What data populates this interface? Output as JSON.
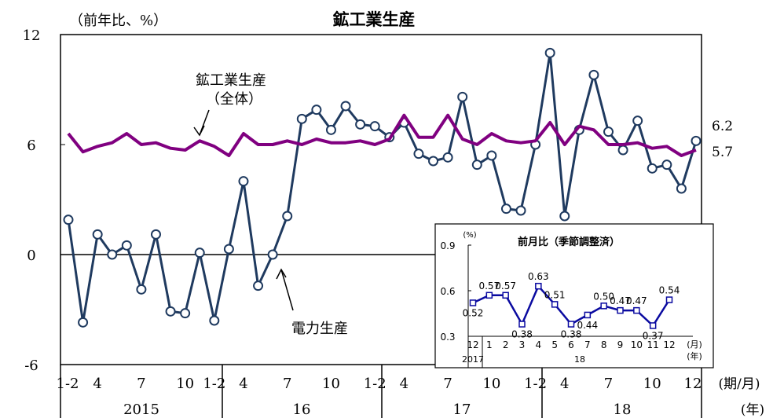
{
  "chart_data": [
    {
      "type": "line",
      "title": "鉱工業生産",
      "ylabel": "（前年比、%）",
      "ylim": [
        -6,
        12
      ],
      "yticks": [
        "12",
        "6",
        "0",
        "-6"
      ],
      "x_ticks": [
        "1-2",
        "4",
        "7",
        "10",
        "1-2",
        "4",
        "7",
        "10",
        "1-2",
        "4",
        "7",
        "10",
        "1-2",
        "4",
        "7",
        "10",
        "12"
      ],
      "x_unit": "(期/月)",
      "years": [
        "2015",
        "16",
        "17",
        "18"
      ],
      "year_unit": "(年)",
      "series": [
        {
          "name": "鉱工業生産",
          "name_line2": "（全体）",
          "color": "#800080",
          "end_label": "5.7",
          "values": [
            6.6,
            5.6,
            5.9,
            6.1,
            6.6,
            6.0,
            6.1,
            5.8,
            5.7,
            6.2,
            5.9,
            5.4,
            6.6,
            6.0,
            6.0,
            6.2,
            6.0,
            6.3,
            6.1,
            6.1,
            6.2,
            6.0,
            6.3,
            7.6,
            6.4,
            6.4,
            7.6,
            6.3,
            6.0,
            6.6,
            6.2,
            6.1,
            6.2,
            7.2,
            6.0,
            7.0,
            6.8,
            6.0,
            6.0,
            6.1,
            5.8,
            5.9,
            5.4,
            5.7
          ]
        },
        {
          "name": "電力生産",
          "color": "#1f3a5f",
          "end_label": "6.2",
          "values": [
            1.9,
            -3.7,
            1.1,
            0.0,
            0.5,
            -1.9,
            1.1,
            -3.1,
            -3.2,
            0.1,
            -3.6,
            0.3,
            4.0,
            -1.7,
            0.0,
            2.1,
            7.4,
            7.9,
            6.8,
            8.1,
            7.1,
            7.0,
            6.4,
            7.2,
            5.5,
            5.1,
            5.3,
            8.6,
            4.9,
            5.4,
            2.5,
            2.4,
            6.0,
            11.0,
            2.1,
            6.8,
            9.8,
            6.7,
            5.7,
            7.3,
            4.7,
            4.9,
            3.6,
            6.2
          ]
        }
      ]
    },
    {
      "type": "line",
      "title": "前月比（季節調整済）",
      "ylabel": "(%)",
      "ylim": [
        0.3,
        0.9
      ],
      "yticks": [
        "0.9",
        "0.6",
        "0.3"
      ],
      "categories": [
        "12",
        "1",
        "2",
        "3",
        "4",
        "5",
        "6",
        "7",
        "8",
        "9",
        "10",
        "11",
        "12"
      ],
      "x_unit": "(月)",
      "x_unit2": "(年)",
      "year_labels": [
        "2017",
        "18"
      ],
      "series": [
        {
          "color": "#0a0aa0",
          "values": [
            0.52,
            0.57,
            0.57,
            0.38,
            0.63,
            0.51,
            0.38,
            0.44,
            0.5,
            0.47,
            0.47,
            0.37,
            0.54
          ],
          "labels": [
            "0.52",
            "0.57",
            "0.57",
            "0.38",
            "0.63",
            "0.51",
            "0.38",
            "0.44",
            "0.50",
            "0.47",
            "0.47",
            "0.37",
            "0.54"
          ]
        }
      ]
    }
  ]
}
